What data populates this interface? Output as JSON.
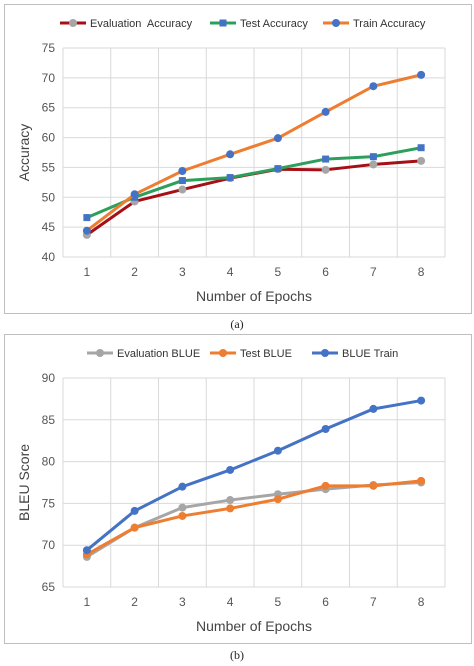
{
  "chart_data": [
    {
      "id": "a",
      "type": "line",
      "caption": "(a)",
      "xlabel": "Number of Epochs",
      "ylabel": "Accuracy",
      "ylim": [
        40,
        75
      ],
      "yticks": [
        40,
        45,
        50,
        55,
        60,
        65,
        70,
        75
      ],
      "categories": [
        "1",
        "2",
        "3",
        "4",
        "5",
        "6",
        "7",
        "8"
      ],
      "grid": true,
      "legend_position": "top",
      "series": [
        {
          "name": "Evaluation  Accuracy",
          "color": "#a50f15",
          "marker": "circle",
          "marker_color": "#a6a6a6",
          "values": [
            43.7,
            49.3,
            51.3,
            53.2,
            54.7,
            54.6,
            55.5,
            56.1
          ]
        },
        {
          "name": "Test Accuracy",
          "color": "#2ca05a",
          "marker": "square",
          "marker_color": "#4472c4",
          "values": [
            46.6,
            50.0,
            52.8,
            53.3,
            54.8,
            56.4,
            56.8,
            58.3
          ]
        },
        {
          "name": "Train Accuracy",
          "color": "#ed7d31",
          "marker": "circle",
          "marker_color": "#4472c4",
          "values": [
            44.4,
            50.5,
            54.4,
            57.2,
            59.9,
            64.3,
            68.6,
            70.5
          ]
        }
      ]
    },
    {
      "id": "b",
      "type": "line",
      "caption": "(b)",
      "xlabel": "Number of Epochs",
      "ylabel": "BLEU Score",
      "ylim": [
        65,
        90
      ],
      "yticks": [
        65,
        70,
        75,
        80,
        85,
        90
      ],
      "categories": [
        "1",
        "2",
        "3",
        "4",
        "5",
        "6",
        "7",
        "8"
      ],
      "grid": true,
      "legend_position": "top",
      "series": [
        {
          "name": "Evaluation BLUE",
          "color": "#a6a6a6",
          "marker": "circle",
          "marker_color": "#a6a6a6",
          "values": [
            68.6,
            72.1,
            74.5,
            75.4,
            76.1,
            76.7,
            77.2,
            77.5
          ]
        },
        {
          "name": "Test BLUE",
          "color": "#ed7d31",
          "marker": "circle",
          "marker_color": "#ed7d31",
          "values": [
            68.9,
            72.1,
            73.5,
            74.4,
            75.5,
            77.1,
            77.1,
            77.7
          ]
        },
        {
          "name": "BLUE Train",
          "color": "#4472c4",
          "marker": "circle",
          "marker_color": "#4472c4",
          "values": [
            69.4,
            74.1,
            77.0,
            79.0,
            81.3,
            83.9,
            86.3,
            87.3
          ]
        }
      ]
    }
  ]
}
